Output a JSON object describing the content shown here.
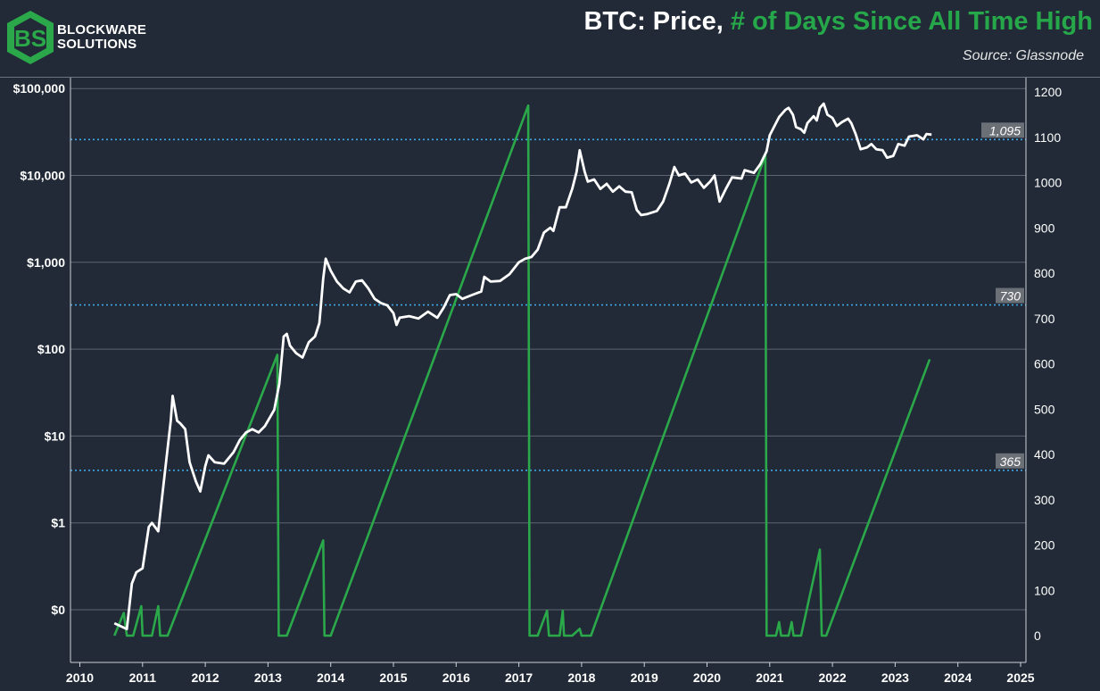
{
  "brand": {
    "line1": "BLOCKWARE",
    "line2": "SOLUTIONS"
  },
  "title": {
    "prefix": "BTC: Price,",
    "highlight": "# of Days Since All Time High"
  },
  "source": "Source: Glassnode",
  "colors": {
    "background": "#212a36",
    "price": "#ffffff",
    "days": "#2aa84a",
    "reference": "#3fa6e8",
    "title_highlight": "#26a84a"
  },
  "chart_data": {
    "type": "line",
    "x_ticks": [
      "2010",
      "2011",
      "2012",
      "2013",
      "2014",
      "2015",
      "2016",
      "2017",
      "2018",
      "2019",
      "2020",
      "2021",
      "2022",
      "2023",
      "2024",
      "2025"
    ],
    "xlim": [
      2010.0,
      2025.0
    ],
    "left_axis": {
      "scale": "log",
      "ticks": [
        "$0",
        "$1",
        "$10",
        "$100",
        "$1,000",
        "$10,000",
        "$100,000"
      ]
    },
    "right_axis": {
      "ylim": [
        0,
        1200
      ],
      "ticks": [
        "0",
        "100",
        "200",
        "300",
        "400",
        "500",
        "600",
        "700",
        "800",
        "900",
        "1000",
        "1100",
        "1200"
      ]
    },
    "reference_lines": [
      {
        "label": "1,095",
        "value": 1095
      },
      {
        "label": "730",
        "value": 730
      },
      {
        "label": "365",
        "value": 365
      }
    ],
    "series": [
      {
        "axis": "left",
        "points": [
          [
            2010.55,
            0.07
          ],
          [
            2010.75,
            0.06
          ],
          [
            2010.83,
            0.2
          ],
          [
            2010.9,
            0.27
          ],
          [
            2011.0,
            0.3
          ],
          [
            2011.1,
            0.9
          ],
          [
            2011.15,
            1.0
          ],
          [
            2011.25,
            0.8
          ],
          [
            2011.35,
            3.5
          ],
          [
            2011.45,
            15
          ],
          [
            2011.48,
            29
          ],
          [
            2011.55,
            15
          ],
          [
            2011.6,
            14
          ],
          [
            2011.68,
            12
          ],
          [
            2011.75,
            5
          ],
          [
            2011.85,
            3
          ],
          [
            2011.92,
            2.3
          ],
          [
            2012.0,
            4.5
          ],
          [
            2012.05,
            6
          ],
          [
            2012.15,
            5
          ],
          [
            2012.3,
            4.8
          ],
          [
            2012.45,
            6.5
          ],
          [
            2012.55,
            9
          ],
          [
            2012.65,
            11
          ],
          [
            2012.75,
            12
          ],
          [
            2012.85,
            11
          ],
          [
            2012.95,
            13
          ],
          [
            2013.1,
            20
          ],
          [
            2013.18,
            40
          ],
          [
            2013.25,
            140
          ],
          [
            2013.3,
            150
          ],
          [
            2013.35,
            110
          ],
          [
            2013.45,
            90
          ],
          [
            2013.55,
            80
          ],
          [
            2013.65,
            120
          ],
          [
            2013.75,
            140
          ],
          [
            2013.82,
            200
          ],
          [
            2013.88,
            650
          ],
          [
            2013.92,
            1100
          ],
          [
            2014.0,
            800
          ],
          [
            2014.1,
            600
          ],
          [
            2014.2,
            500
          ],
          [
            2014.3,
            450
          ],
          [
            2014.4,
            600
          ],
          [
            2014.5,
            620
          ],
          [
            2014.6,
            500
          ],
          [
            2014.7,
            380
          ],
          [
            2014.8,
            340
          ],
          [
            2014.9,
            320
          ],
          [
            2015.0,
            260
          ],
          [
            2015.05,
            190
          ],
          [
            2015.1,
            230
          ],
          [
            2015.25,
            240
          ],
          [
            2015.4,
            225
          ],
          [
            2015.55,
            270
          ],
          [
            2015.7,
            230
          ],
          [
            2015.8,
            300
          ],
          [
            2015.9,
            420
          ],
          [
            2016.0,
            430
          ],
          [
            2016.1,
            380
          ],
          [
            2016.25,
            420
          ],
          [
            2016.4,
            460
          ],
          [
            2016.45,
            680
          ],
          [
            2016.55,
            600
          ],
          [
            2016.7,
            610
          ],
          [
            2016.85,
            730
          ],
          [
            2017.0,
            1000
          ],
          [
            2017.1,
            1100
          ],
          [
            2017.2,
            1150
          ],
          [
            2017.3,
            1400
          ],
          [
            2017.4,
            2200
          ],
          [
            2017.5,
            2500
          ],
          [
            2017.55,
            2300
          ],
          [
            2017.65,
            4300
          ],
          [
            2017.75,
            4300
          ],
          [
            2017.85,
            7000
          ],
          [
            2017.92,
            11000
          ],
          [
            2017.97,
            19500
          ],
          [
            2018.05,
            11000
          ],
          [
            2018.1,
            8500
          ],
          [
            2018.2,
            9000
          ],
          [
            2018.3,
            7000
          ],
          [
            2018.4,
            8000
          ],
          [
            2018.5,
            6500
          ],
          [
            2018.6,
            7500
          ],
          [
            2018.7,
            6500
          ],
          [
            2018.8,
            6400
          ],
          [
            2018.88,
            4000
          ],
          [
            2018.95,
            3500
          ],
          [
            2019.05,
            3600
          ],
          [
            2019.2,
            3900
          ],
          [
            2019.3,
            5000
          ],
          [
            2019.4,
            8000
          ],
          [
            2019.48,
            12500
          ],
          [
            2019.55,
            10000
          ],
          [
            2019.65,
            10500
          ],
          [
            2019.75,
            8300
          ],
          [
            2019.85,
            9000
          ],
          [
            2019.95,
            7200
          ],
          [
            2020.05,
            8500
          ],
          [
            2020.12,
            10000
          ],
          [
            2020.2,
            5000
          ],
          [
            2020.3,
            7000
          ],
          [
            2020.4,
            9500
          ],
          [
            2020.55,
            9200
          ],
          [
            2020.6,
            11500
          ],
          [
            2020.75,
            10700
          ],
          [
            2020.85,
            13500
          ],
          [
            2020.95,
            19000
          ],
          [
            2021.0,
            29000
          ],
          [
            2021.1,
            40000
          ],
          [
            2021.15,
            47000
          ],
          [
            2021.25,
            57000
          ],
          [
            2021.3,
            60000
          ],
          [
            2021.37,
            50000
          ],
          [
            2021.42,
            36000
          ],
          [
            2021.5,
            34000
          ],
          [
            2021.55,
            31000
          ],
          [
            2021.6,
            40000
          ],
          [
            2021.7,
            48000
          ],
          [
            2021.75,
            43000
          ],
          [
            2021.8,
            60000
          ],
          [
            2021.86,
            67000
          ],
          [
            2021.92,
            50000
          ],
          [
            2022.0,
            46000
          ],
          [
            2022.07,
            37000
          ],
          [
            2022.15,
            41000
          ],
          [
            2022.25,
            45000
          ],
          [
            2022.3,
            40000
          ],
          [
            2022.37,
            30000
          ],
          [
            2022.45,
            20000
          ],
          [
            2022.55,
            21000
          ],
          [
            2022.62,
            23000
          ],
          [
            2022.7,
            20000
          ],
          [
            2022.8,
            19500
          ],
          [
            2022.87,
            16000
          ],
          [
            2022.97,
            16800
          ],
          [
            2023.05,
            23000
          ],
          [
            2023.15,
            22000
          ],
          [
            2023.22,
            28000
          ],
          [
            2023.35,
            29000
          ],
          [
            2023.45,
            26000
          ],
          [
            2023.5,
            30000
          ],
          [
            2023.58,
            29500
          ]
        ]
      },
      {
        "axis": "right",
        "points": [
          [
            2010.55,
            0
          ],
          [
            2010.7,
            50
          ],
          [
            2010.75,
            0
          ],
          [
            2010.85,
            0
          ],
          [
            2010.98,
            65
          ],
          [
            2011.0,
            0
          ],
          [
            2011.15,
            0
          ],
          [
            2011.25,
            65
          ],
          [
            2011.28,
            0
          ],
          [
            2011.4,
            0
          ],
          [
            2013.15,
            620
          ],
          [
            2013.17,
            0
          ],
          [
            2013.3,
            0
          ],
          [
            2013.88,
            210
          ],
          [
            2013.9,
            0
          ],
          [
            2014.0,
            0
          ],
          [
            2017.15,
            1170
          ],
          [
            2017.17,
            0
          ],
          [
            2017.3,
            0
          ],
          [
            2017.45,
            55
          ],
          [
            2017.48,
            0
          ],
          [
            2017.65,
            0
          ],
          [
            2017.7,
            55
          ],
          [
            2017.72,
            0
          ],
          [
            2017.85,
            0
          ],
          [
            2017.97,
            15
          ],
          [
            2018.0,
            0
          ],
          [
            2018.15,
            0
          ],
          [
            2020.93,
            1060
          ],
          [
            2020.95,
            0
          ],
          [
            2021.1,
            0
          ],
          [
            2021.15,
            30
          ],
          [
            2021.18,
            0
          ],
          [
            2021.3,
            0
          ],
          [
            2021.35,
            30
          ],
          [
            2021.38,
            0
          ],
          [
            2021.5,
            0
          ],
          [
            2021.8,
            190
          ],
          [
            2021.83,
            0
          ],
          [
            2021.9,
            0
          ],
          [
            2023.55,
            610
          ]
        ]
      }
    ]
  }
}
